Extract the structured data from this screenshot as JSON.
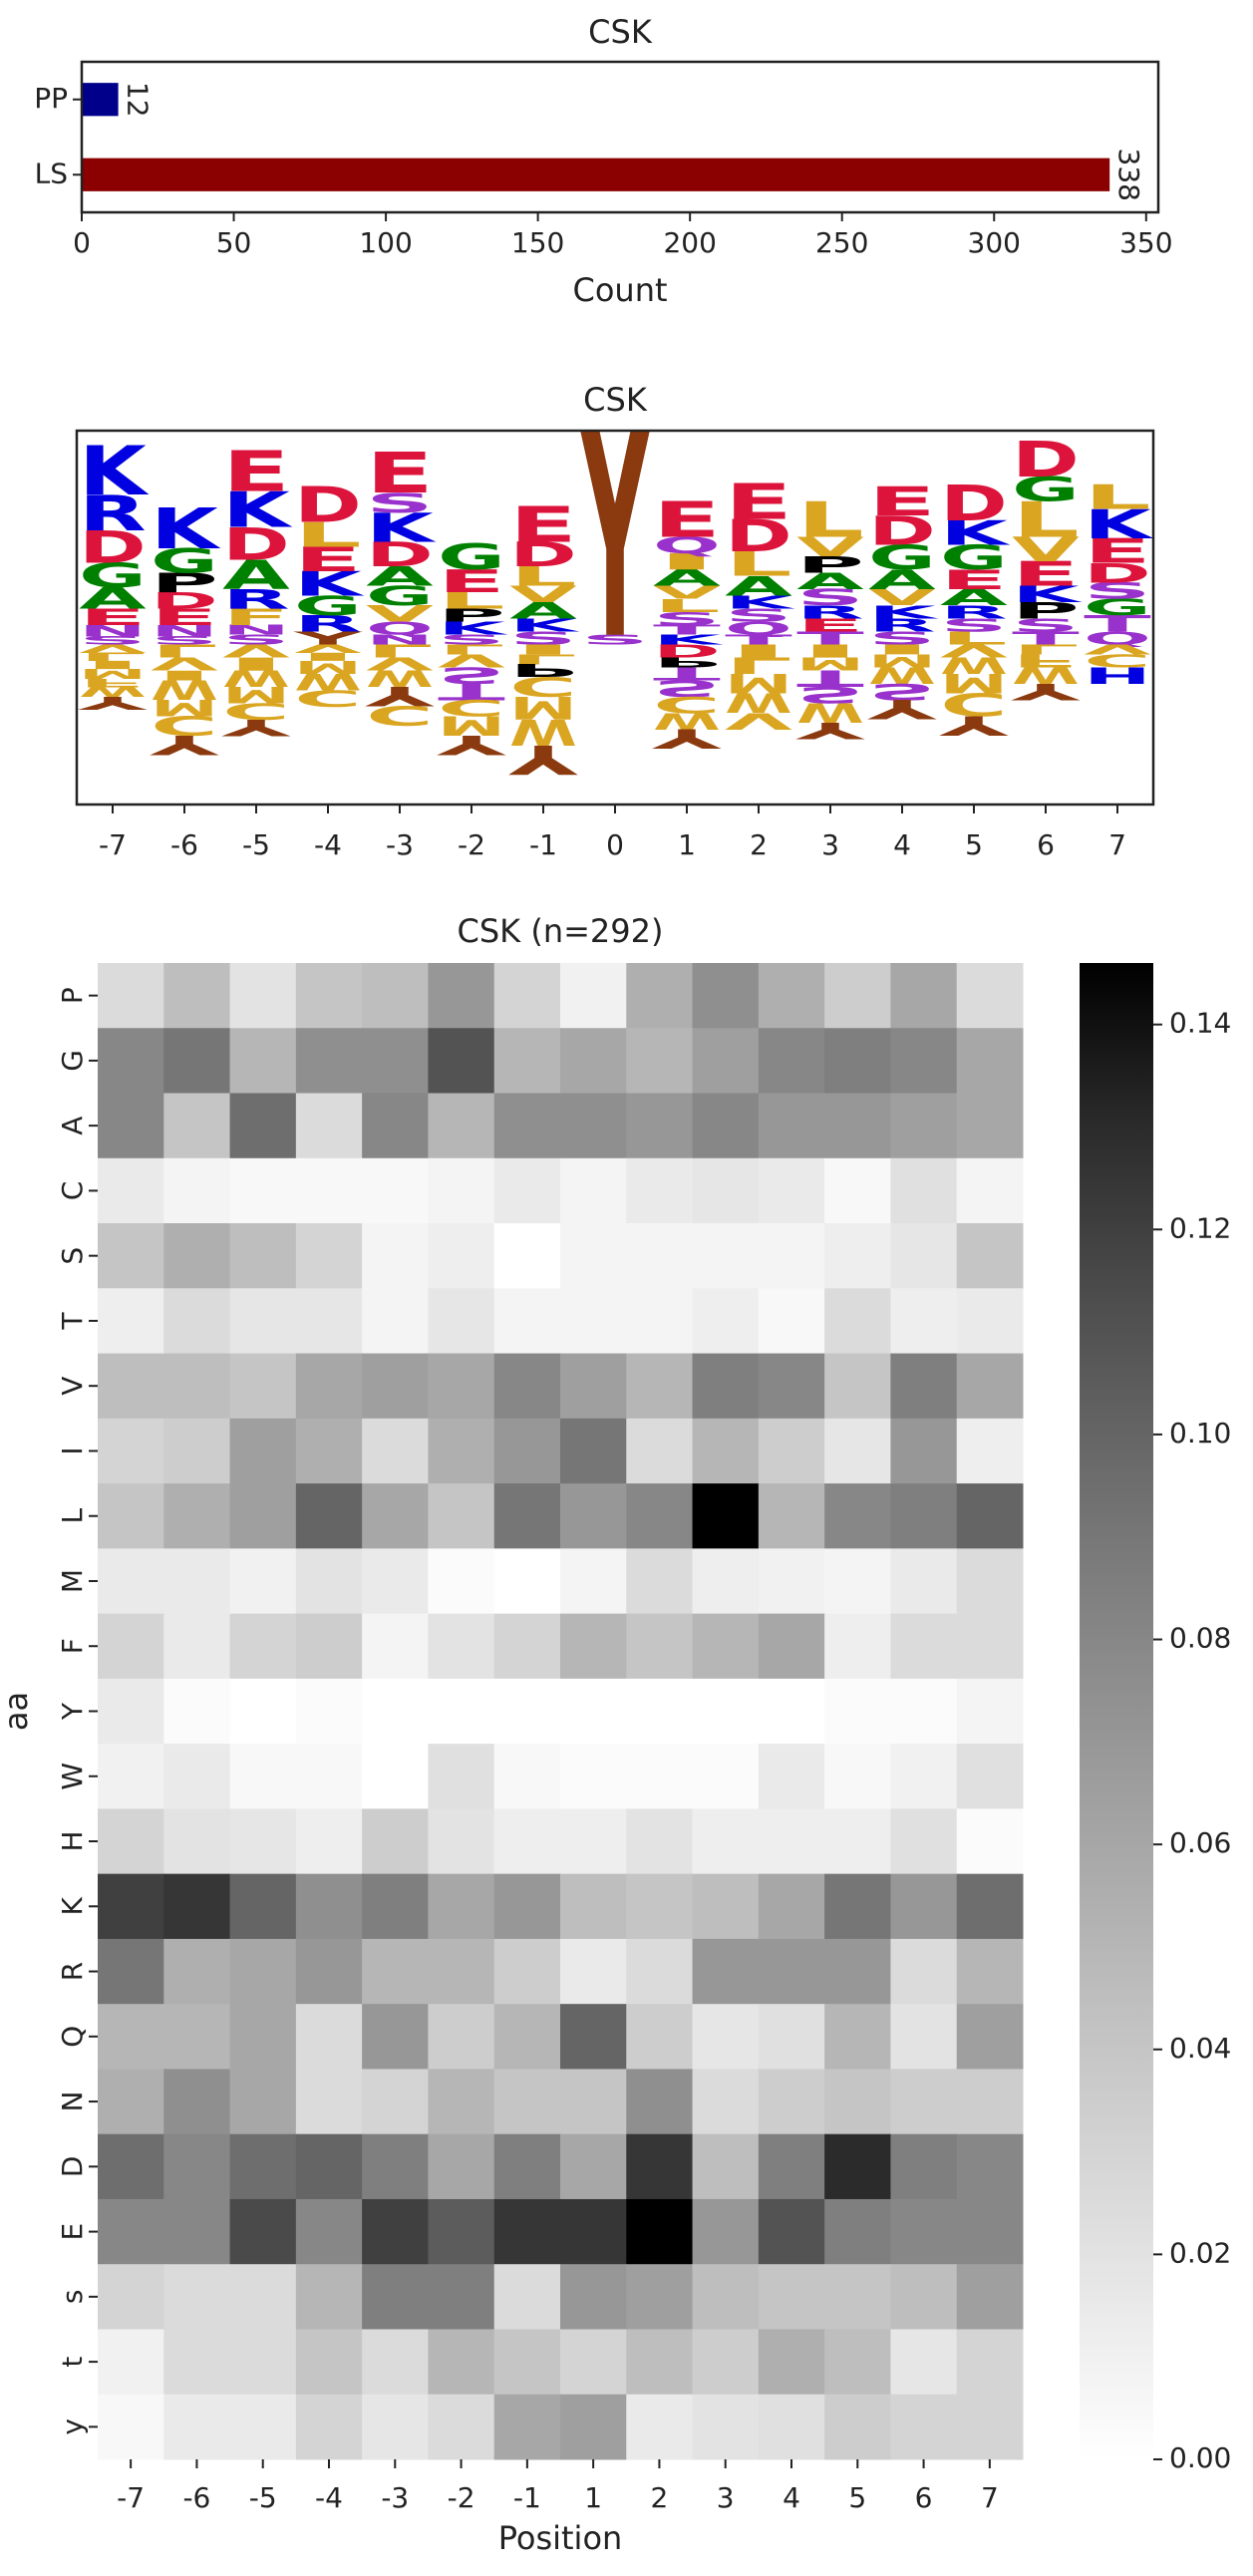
{
  "chart_data": [
    {
      "type": "bar",
      "orientation": "horizontal",
      "title": "CSK",
      "categories": [
        "PP",
        "LS"
      ],
      "values": [
        12,
        338
      ],
      "colors": [
        "#00008b",
        "#8b0000"
      ],
      "xlim": [
        0,
        354
      ],
      "xticks": [
        0,
        50,
        100,
        150,
        200,
        250,
        300,
        350
      ],
      "x_label": "Count"
    },
    {
      "type": "logo",
      "title": "CSK",
      "categories": [
        "-7",
        "-6",
        "-5",
        "-4",
        "-3",
        "-2",
        "-1",
        "0",
        "1",
        "2",
        "3",
        "4",
        "5",
        "6",
        "7"
      ],
      "ylim": [
        -0.98,
        1.31
      ],
      "letter_colors": {
        "K": "#0000e0",
        "R": "#0000e0",
        "H": "#0000e0",
        "D": "#dc143c",
        "E": "#dc143c",
        "G": "#008000",
        "A": "#008000",
        "S": "#9932cc",
        "T": "#9932cc",
        "N": "#9932cc",
        "Q": "#9932cc",
        "P": "#000000",
        "L": "#daa520",
        "V": "#daa520",
        "I": "#daa520",
        "M": "#daa520",
        "F": "#daa520",
        "W": "#daa520",
        "C": "#daa520",
        "Y": "#8b3a0f"
      },
      "stacks": [
        {
          "letters": [
            "S",
            "N",
            "E",
            "A",
            "G",
            "D",
            "R",
            "K",
            "V",
            "L",
            "I",
            "M",
            "F",
            "W",
            "Y"
          ],
          "values": [
            0.05,
            0.07,
            0.1,
            0.13,
            0.15,
            0.2,
            0.22,
            0.3,
            -0.05,
            -0.05,
            -0.05,
            -0.06,
            -0.05,
            -0.06,
            -0.08
          ]
        },
        {
          "letters": [
            "S",
            "N",
            "E",
            "D",
            "P",
            "G",
            "K",
            "L",
            "V",
            "I",
            "W",
            "M",
            "C",
            "Y"
          ],
          "values": [
            0.05,
            0.07,
            0.1,
            0.1,
            0.12,
            0.15,
            0.25,
            -0.08,
            -0.08,
            -0.06,
            -0.12,
            -0.1,
            -0.12,
            -0.12
          ]
        },
        {
          "letters": [
            "S",
            "N",
            "F",
            "R",
            "A",
            "D",
            "K",
            "E",
            "V",
            "I",
            "W",
            "M",
            "C",
            "Y"
          ],
          "values": [
            0.06,
            0.06,
            0.1,
            0.12,
            0.18,
            0.2,
            0.22,
            0.25,
            -0.08,
            -0.08,
            -0.1,
            -0.1,
            -0.1,
            -0.1
          ]
        },
        {
          "letters": [
            "Y",
            "R",
            "G",
            "K",
            "E",
            "L",
            "D",
            "V",
            "I",
            "M",
            "W",
            "C"
          ],
          "values": [
            0.08,
            0.1,
            0.12,
            0.15,
            0.15,
            0.15,
            0.22,
            -0.05,
            -0.05,
            -0.08,
            -0.1,
            -0.1
          ]
        },
        {
          "letters": [
            "N",
            "Q",
            "V",
            "G",
            "A",
            "D",
            "K",
            "S",
            "E",
            "L",
            "V",
            "W",
            "Y",
            "C"
          ],
          "values": [
            0.06,
            0.08,
            0.1,
            0.12,
            0.12,
            0.15,
            0.18,
            0.12,
            0.25,
            -0.08,
            -0.08,
            -0.1,
            -0.12,
            -0.12
          ]
        },
        {
          "letters": [
            "S",
            "K",
            "P",
            "L",
            "E",
            "G",
            "L",
            "V",
            "S",
            "T",
            "C",
            "M",
            "Y"
          ],
          "values": [
            0.06,
            0.08,
            0.08,
            0.1,
            0.14,
            0.16,
            -0.06,
            -0.08,
            -0.1,
            -0.1,
            -0.1,
            -0.12,
            -0.12
          ]
        },
        {
          "letters": [
            "S",
            "K",
            "A",
            "V",
            "L",
            "D",
            "E",
            "I",
            "L",
            "P",
            "C",
            "M",
            "W",
            "Y"
          ],
          "values": [
            0.08,
            0.08,
            0.1,
            0.1,
            0.12,
            0.15,
            0.22,
            -0.06,
            -0.06,
            -0.08,
            -0.12,
            -0.14,
            -0.16,
            -0.18
          ]
        },
        {
          "letters": [
            "S",
            "Y"
          ],
          "values": [
            0.06,
            1.25
          ]
        },
        {
          "letters": [
            "K",
            "T",
            "S",
            "L",
            "V",
            "A",
            "I",
            "Q",
            "E",
            "D",
            "P",
            "T",
            "S",
            "C",
            "W",
            "Y"
          ],
          "values": [
            0.06,
            0.06,
            0.08,
            0.08,
            0.08,
            0.1,
            0.1,
            0.1,
            0.22,
            -0.08,
            -0.06,
            -0.08,
            -0.1,
            -0.1,
            -0.1,
            -0.12
          ]
        },
        {
          "letters": [
            "T",
            "Q",
            "S",
            "K",
            "A",
            "L",
            "D",
            "E",
            "I",
            "L",
            "M",
            "W",
            "V"
          ],
          "values": [
            0.06,
            0.08,
            0.08,
            0.08,
            0.12,
            0.15,
            0.2,
            0.22,
            -0.08,
            -0.1,
            -0.12,
            -0.12,
            -0.1
          ]
        },
        {
          "letters": [
            "T",
            "E",
            "R",
            "S",
            "A",
            "P",
            "V",
            "L",
            "I",
            "M",
            "T",
            "S",
            "W",
            "Y"
          ],
          "values": [
            0.08,
            0.08,
            0.08,
            0.1,
            0.1,
            0.1,
            0.12,
            0.22,
            -0.08,
            -0.08,
            -0.1,
            -0.1,
            -0.12,
            -0.1
          ]
        },
        {
          "letters": [
            "S",
            "R",
            "K",
            "V",
            "A",
            "G",
            "D",
            "E",
            "I",
            "M",
            "W",
            "S",
            "Y"
          ],
          "values": [
            0.08,
            0.08,
            0.08,
            0.1,
            0.12,
            0.15,
            0.18,
            0.18,
            -0.06,
            -0.08,
            -0.1,
            -0.1,
            -0.12
          ]
        },
        {
          "letters": [
            "L",
            "S",
            "R",
            "A",
            "E",
            "G",
            "K",
            "D",
            "V",
            "W",
            "M",
            "C",
            "Y"
          ],
          "values": [
            0.08,
            0.08,
            0.08,
            0.1,
            0.12,
            0.15,
            0.15,
            0.22,
            -0.08,
            -0.1,
            -0.12,
            -0.14,
            -0.12
          ]
        },
        {
          "letters": [
            "T",
            "S",
            "P",
            "K",
            "E",
            "V",
            "L",
            "G",
            "D",
            "L",
            "F",
            "W",
            "Y"
          ],
          "values": [
            0.08,
            0.08,
            0.1,
            0.1,
            0.15,
            0.15,
            0.22,
            0.15,
            0.22,
            -0.06,
            -0.08,
            -0.1,
            -0.1
          ]
        },
        {
          "letters": [
            "Q",
            "T",
            "G",
            "S",
            "D",
            "E",
            "K",
            "L",
            "V",
            "C",
            "H"
          ],
          "values": [
            0.08,
            0.1,
            0.1,
            0.1,
            0.12,
            0.15,
            0.18,
            0.15,
            -0.06,
            -0.08,
            -0.1
          ]
        }
      ]
    },
    {
      "type": "heatmap",
      "title": "CSK (n=292)",
      "x_label": "Position",
      "y_label": "aa",
      "cmap": "Greys",
      "x_categories": [
        "-7",
        "-6",
        "-5",
        "-4",
        "-3",
        "-2",
        "-1",
        "1",
        "2",
        "3",
        "4",
        "5",
        "6",
        "7"
      ],
      "y_categories": [
        "P",
        "G",
        "A",
        "C",
        "S",
        "T",
        "V",
        "I",
        "L",
        "M",
        "F",
        "Y",
        "W",
        "H",
        "K",
        "R",
        "Q",
        "N",
        "D",
        "E",
        "s",
        "t",
        "y"
      ],
      "values": [
        [
          0.025,
          0.045,
          0.02,
          0.04,
          0.045,
          0.07,
          0.03,
          0.01,
          0.055,
          0.075,
          0.055,
          0.035,
          0.06,
          0.025
        ],
        [
          0.08,
          0.09,
          0.05,
          0.075,
          0.075,
          0.11,
          0.05,
          0.06,
          0.05,
          0.065,
          0.08,
          0.085,
          0.08,
          0.06
        ],
        [
          0.08,
          0.04,
          0.095,
          0.025,
          0.08,
          0.05,
          0.075,
          0.075,
          0.07,
          0.08,
          0.07,
          0.07,
          0.065,
          0.06
        ],
        [
          0.015,
          0.008,
          0.005,
          0.005,
          0.005,
          0.008,
          0.015,
          0.008,
          0.015,
          0.018,
          0.015,
          0.005,
          0.022,
          0.008
        ],
        [
          0.04,
          0.055,
          0.045,
          0.03,
          0.008,
          0.012,
          0.0,
          0.008,
          0.008,
          0.008,
          0.008,
          0.012,
          0.018,
          0.04
        ],
        [
          0.012,
          0.025,
          0.018,
          0.018,
          0.008,
          0.018,
          0.008,
          0.008,
          0.008,
          0.012,
          0.005,
          0.025,
          0.012,
          0.015
        ],
        [
          0.045,
          0.045,
          0.04,
          0.06,
          0.065,
          0.06,
          0.08,
          0.065,
          0.05,
          0.085,
          0.08,
          0.04,
          0.085,
          0.06
        ],
        [
          0.03,
          0.035,
          0.065,
          0.055,
          0.025,
          0.055,
          0.07,
          0.09,
          0.025,
          0.05,
          0.035,
          0.018,
          0.07,
          0.012
        ],
        [
          0.04,
          0.055,
          0.065,
          0.1,
          0.06,
          0.04,
          0.09,
          0.07,
          0.08,
          0.146,
          0.05,
          0.08,
          0.085,
          0.1
        ],
        [
          0.015,
          0.015,
          0.01,
          0.02,
          0.015,
          0.003,
          0.0,
          0.008,
          0.025,
          0.012,
          0.01,
          0.008,
          0.015,
          0.025
        ],
        [
          0.03,
          0.015,
          0.03,
          0.035,
          0.008,
          0.02,
          0.03,
          0.05,
          0.04,
          0.05,
          0.06,
          0.012,
          0.025,
          0.025
        ],
        [
          0.015,
          0.003,
          0.0,
          0.003,
          0.0,
          0.0,
          0.0,
          0.0,
          0.0,
          0.0,
          0.0,
          0.003,
          0.003,
          0.008
        ],
        [
          0.01,
          0.015,
          0.005,
          0.005,
          0.0,
          0.022,
          0.005,
          0.003,
          0.003,
          0.003,
          0.015,
          0.005,
          0.01,
          0.022
        ],
        [
          0.03,
          0.02,
          0.018,
          0.012,
          0.035,
          0.02,
          0.012,
          0.012,
          0.02,
          0.012,
          0.012,
          0.012,
          0.022,
          0.003
        ],
        [
          0.12,
          0.125,
          0.1,
          0.075,
          0.085,
          0.06,
          0.07,
          0.045,
          0.04,
          0.045,
          0.06,
          0.09,
          0.07,
          0.095
        ],
        [
          0.09,
          0.055,
          0.06,
          0.07,
          0.05,
          0.05,
          0.035,
          0.015,
          0.025,
          0.07,
          0.07,
          0.07,
          0.025,
          0.05
        ],
        [
          0.05,
          0.05,
          0.06,
          0.025,
          0.07,
          0.035,
          0.05,
          0.1,
          0.035,
          0.018,
          0.022,
          0.05,
          0.02,
          0.065
        ],
        [
          0.055,
          0.075,
          0.06,
          0.025,
          0.03,
          0.05,
          0.04,
          0.04,
          0.075,
          0.025,
          0.035,
          0.04,
          0.035,
          0.035
        ],
        [
          0.095,
          0.08,
          0.095,
          0.1,
          0.085,
          0.06,
          0.085,
          0.06,
          0.125,
          0.045,
          0.085,
          0.13,
          0.085,
          0.08
        ],
        [
          0.08,
          0.08,
          0.115,
          0.08,
          0.12,
          0.105,
          0.125,
          0.125,
          0.146,
          0.07,
          0.11,
          0.085,
          0.08,
          0.08
        ],
        [
          0.03,
          0.025,
          0.025,
          0.05,
          0.085,
          0.085,
          0.025,
          0.07,
          0.065,
          0.045,
          0.04,
          0.04,
          0.045,
          0.065
        ],
        [
          0.01,
          0.025,
          0.025,
          0.04,
          0.025,
          0.05,
          0.04,
          0.03,
          0.045,
          0.035,
          0.055,
          0.045,
          0.018,
          0.03
        ],
        [
          0.005,
          0.015,
          0.015,
          0.03,
          0.018,
          0.025,
          0.06,
          0.065,
          0.015,
          0.02,
          0.022,
          0.035,
          0.03,
          0.03
        ]
      ],
      "clim": [
        0,
        0.146
      ],
      "colorbar_ticks": [
        {
          "value": 0,
          "label": "0.00"
        },
        {
          "value": 0.02,
          "label": "0.02"
        },
        {
          "value": 0.04,
          "label": "0.04"
        },
        {
          "value": 0.06,
          "label": "0.06"
        },
        {
          "value": 0.08,
          "label": "0.08"
        },
        {
          "value": 0.1,
          "label": "0.10"
        },
        {
          "value": 0.12,
          "label": "0.12"
        },
        {
          "value": 0.14,
          "label": "0.14"
        }
      ]
    }
  ]
}
